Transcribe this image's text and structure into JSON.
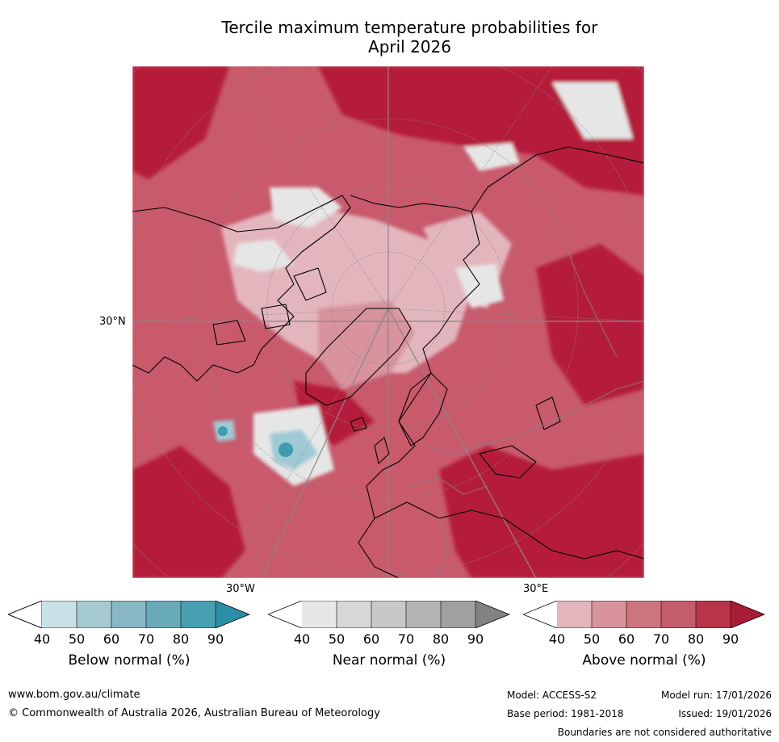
{
  "title_line1": "Tercile maximum temperature probabilities for",
  "title_line2": "April 2026",
  "map": {
    "labels": {
      "lat_30n": "30°N",
      "lon_30w": "30°W",
      "lon_30e": "30°E"
    },
    "colors": {
      "above_dark": "#b51d3a",
      "above_mid": "#c85a6c",
      "above_light": "#e3b6bd",
      "near": "#e6e6e6",
      "below": "#9fcad5",
      "below_dark": "#3e9bb0",
      "coast": "#000000",
      "border": "#808080",
      "grid": "#888888"
    }
  },
  "colorbars": [
    {
      "name": "Below normal (%)",
      "ticks": [
        "40",
        "50",
        "60",
        "70",
        "80",
        "90"
      ],
      "colors": [
        "#ffffff",
        "#c8e1e7",
        "#a6cad2",
        "#87b8c4",
        "#69aab9",
        "#47a1b2",
        "#2b8ea6"
      ]
    },
    {
      "name": "Near normal (%)",
      "ticks": [
        "40",
        "50",
        "60",
        "70",
        "80",
        "90"
      ],
      "colors": [
        "#ffffff",
        "#e7e7e7",
        "#d7d7d7",
        "#c8c8c8",
        "#b4b4b4",
        "#a0a0a0",
        "#828282"
      ]
    },
    {
      "name": "Above normal (%)",
      "ticks": [
        "40",
        "50",
        "60",
        "70",
        "80",
        "90"
      ],
      "colors": [
        "#ffffff",
        "#e3b6bd",
        "#d8939d",
        "#cc7580",
        "#c35c6c",
        "#b93449",
        "#a91d36"
      ]
    }
  ],
  "footer": {
    "website": "www.bom.gov.au/climate",
    "copyright": "© Commonwealth of Australia 2026, Australian Bureau of Meteorology",
    "model": "Model: ACCESS-S2",
    "base_period": "Base period: 1981-2018",
    "model_run": "Model run: 17/01/2026",
    "issued": "Issued: 19/01/2026",
    "disclaimer": "Boundaries are not considered authoritative"
  }
}
